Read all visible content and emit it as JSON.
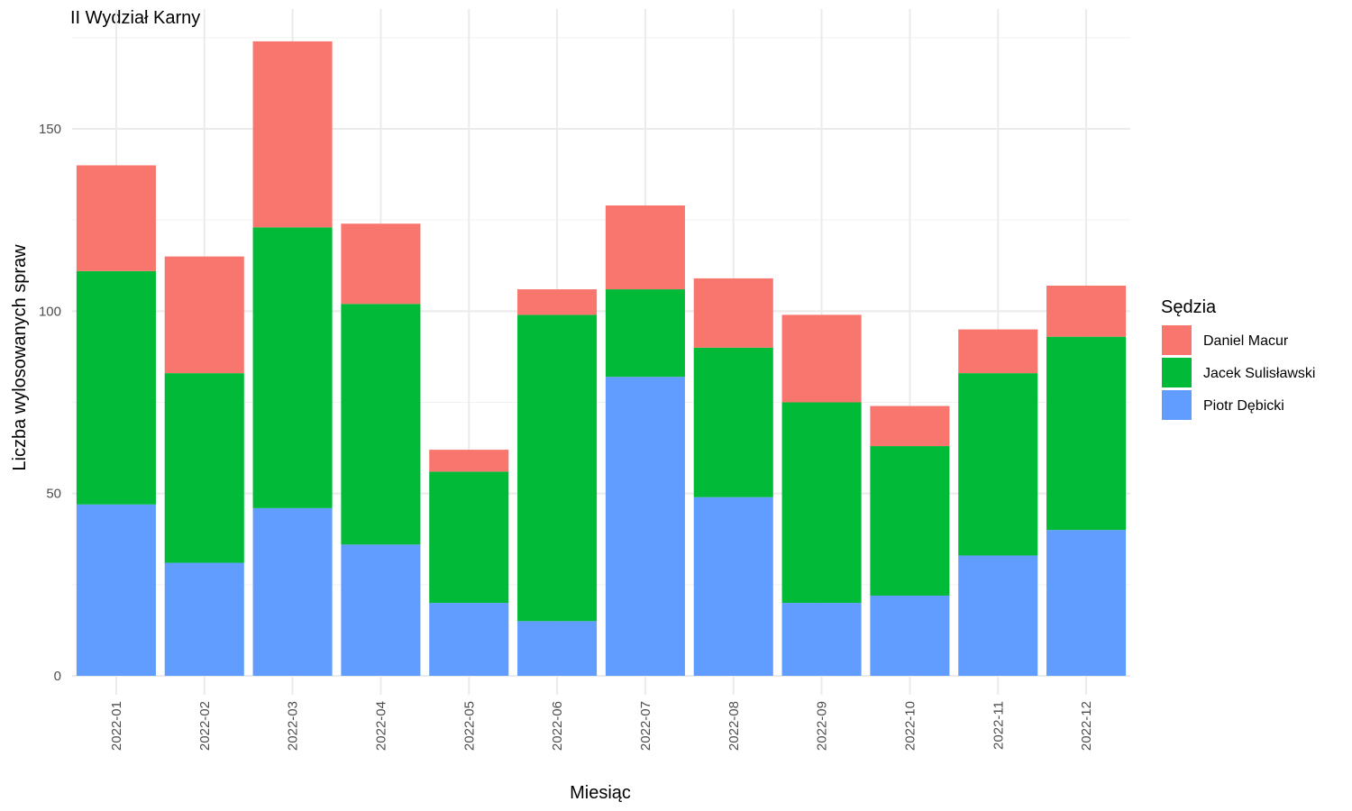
{
  "chart_data": {
    "type": "bar",
    "stacked": true,
    "title": "II Wydział Karny",
    "xlabel": "Miesiąc",
    "ylabel": "Liczba wylosowanych spraw",
    "ylim": [
      0,
      175
    ],
    "yticks": [
      0,
      50,
      100,
      150
    ],
    "grid": true,
    "legend": {
      "title": "Sędzia",
      "position": "right"
    },
    "categories": [
      "2022-01",
      "2022-02",
      "2022-03",
      "2022-04",
      "2022-05",
      "2022-06",
      "2022-07",
      "2022-08",
      "2022-09",
      "2022-10",
      "2022-11",
      "2022-12"
    ],
    "series": [
      {
        "name": "Piotr Dębicki",
        "color": "#619CFF",
        "values": [
          47,
          31,
          46,
          36,
          20,
          15,
          82,
          49,
          20,
          22,
          33,
          40
        ]
      },
      {
        "name": "Jacek Sulisławski",
        "color": "#00BA38",
        "values": [
          64,
          52,
          77,
          66,
          36,
          84,
          24,
          41,
          55,
          41,
          50,
          53
        ]
      },
      {
        "name": "Daniel Macur",
        "color": "#F8766D",
        "values": [
          29,
          32,
          51,
          22,
          6,
          7,
          23,
          19,
          24,
          11,
          12,
          14
        ]
      }
    ],
    "legend_order": [
      "Daniel Macur",
      "Jacek Sulisławski",
      "Piotr Dębicki"
    ]
  }
}
